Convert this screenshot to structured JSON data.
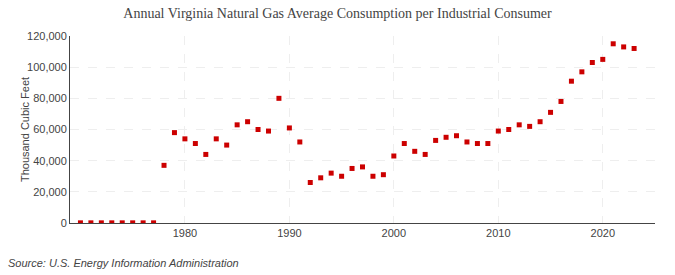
{
  "chart_data": {
    "type": "scatter",
    "title": "Annual Virginia Natural Gas Average Consumption per Industrial Consumer",
    "ylabel": "Thousand Cubic Feet",
    "annotations": [
      "Source: U.S. Energy Information Administration"
    ],
    "x": [
      1970,
      1971,
      1972,
      1973,
      1974,
      1975,
      1976,
      1977,
      1978,
      1979,
      1980,
      1981,
      1982,
      1983,
      1984,
      1985,
      1986,
      1987,
      1988,
      1989,
      1990,
      1991,
      1992,
      1993,
      1994,
      1995,
      1996,
      1997,
      1998,
      1999,
      2000,
      2001,
      2002,
      2003,
      2004,
      2005,
      2006,
      2007,
      2008,
      2009,
      2010,
      2011,
      2012,
      2013,
      2014,
      2015,
      2016,
      2017,
      2018,
      2019,
      2020,
      2021,
      2022,
      2023
    ],
    "values": [
      100,
      100,
      100,
      100,
      100,
      100,
      100,
      100,
      37000,
      58000,
      54000,
      51000,
      44000,
      54000,
      50000,
      63000,
      65000,
      60000,
      59000,
      80000,
      61000,
      52000,
      26000,
      29000,
      32000,
      30000,
      35000,
      36000,
      30000,
      31000,
      43000,
      51000,
      46000,
      44000,
      53000,
      55000,
      56000,
      52000,
      51000,
      51000,
      59000,
      60000,
      63000,
      62000,
      65000,
      71000,
      78000,
      91000,
      97000,
      103000,
      105000,
      115000,
      113000,
      112000
    ],
    "color": "#cc0000",
    "marker": "square",
    "xlim": [
      1969,
      2025
    ],
    "xticks": [
      1980,
      1990,
      2000,
      2010,
      2020
    ],
    "ylim": [
      0,
      120000
    ],
    "yticks": [
      0,
      {
        "value": 20000,
        "label": "20,000"
      },
      {
        "value": 40000,
        "label": "40,000"
      },
      {
        "value": 60000,
        "label": "60,000"
      },
      {
        "value": 80000,
        "label": "80,000"
      },
      {
        "value": 100000,
        "label": "100,000"
      },
      {
        "value": 120000,
        "label": "120,000"
      }
    ],
    "grid": true
  }
}
